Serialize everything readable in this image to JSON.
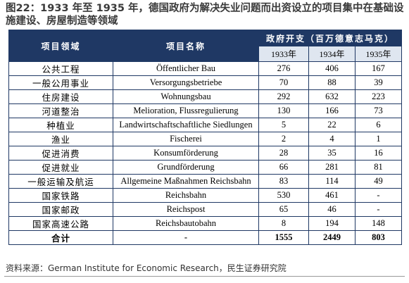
{
  "header": {
    "title": "图22：1933 年至 1935 年，德国政府为解决失业问题而出资设立的项目集中在基础设施建设、房屋制造等领域"
  },
  "table": {
    "columns": [
      "项目领域",
      "项目名称",
      "政府开支（百万德意志马克）"
    ],
    "years": [
      "1933年",
      "1934年",
      "1935年"
    ],
    "rows": [
      [
        "公共工程",
        "Öffentlicher Bau",
        276,
        406,
        167
      ],
      [
        "一般公用事业",
        "Versorgungsbetriebe",
        70,
        88,
        39
      ],
      [
        "住房建设",
        "Wohnungsbau",
        292,
        632,
        223
      ],
      [
        "河道整治",
        "Melioration, Flussregulierung",
        130,
        166,
        73
      ],
      [
        "种植业",
        "Landwirtschaftschaftliche Siedlungen",
        5,
        22,
        6
      ],
      [
        "渔业",
        "Fischerei",
        2,
        4,
        1
      ],
      [
        "促进消费",
        "Konsumförderung",
        28,
        35,
        16
      ],
      [
        "促进就业",
        "Grundförderung",
        66,
        281,
        81
      ],
      [
        "一般运输及航运",
        "Allgemeine Maßnahmen Reichsbahn",
        83,
        114,
        49
      ],
      [
        "国家铁路",
        "Reichsbahn",
        530,
        461,
        "-"
      ],
      [
        "国家邮政",
        "Reichspost",
        65,
        46,
        "-"
      ],
      [
        "国家高速公路",
        "Reichsbautobahn",
        8,
        194,
        148
      ]
    ],
    "total": [
      "合计",
      "-",
      1555,
      2449,
      803
    ]
  },
  "footer": {
    "source": "资料来源：German Institute for Economic Research，民生证券研究院"
  }
}
